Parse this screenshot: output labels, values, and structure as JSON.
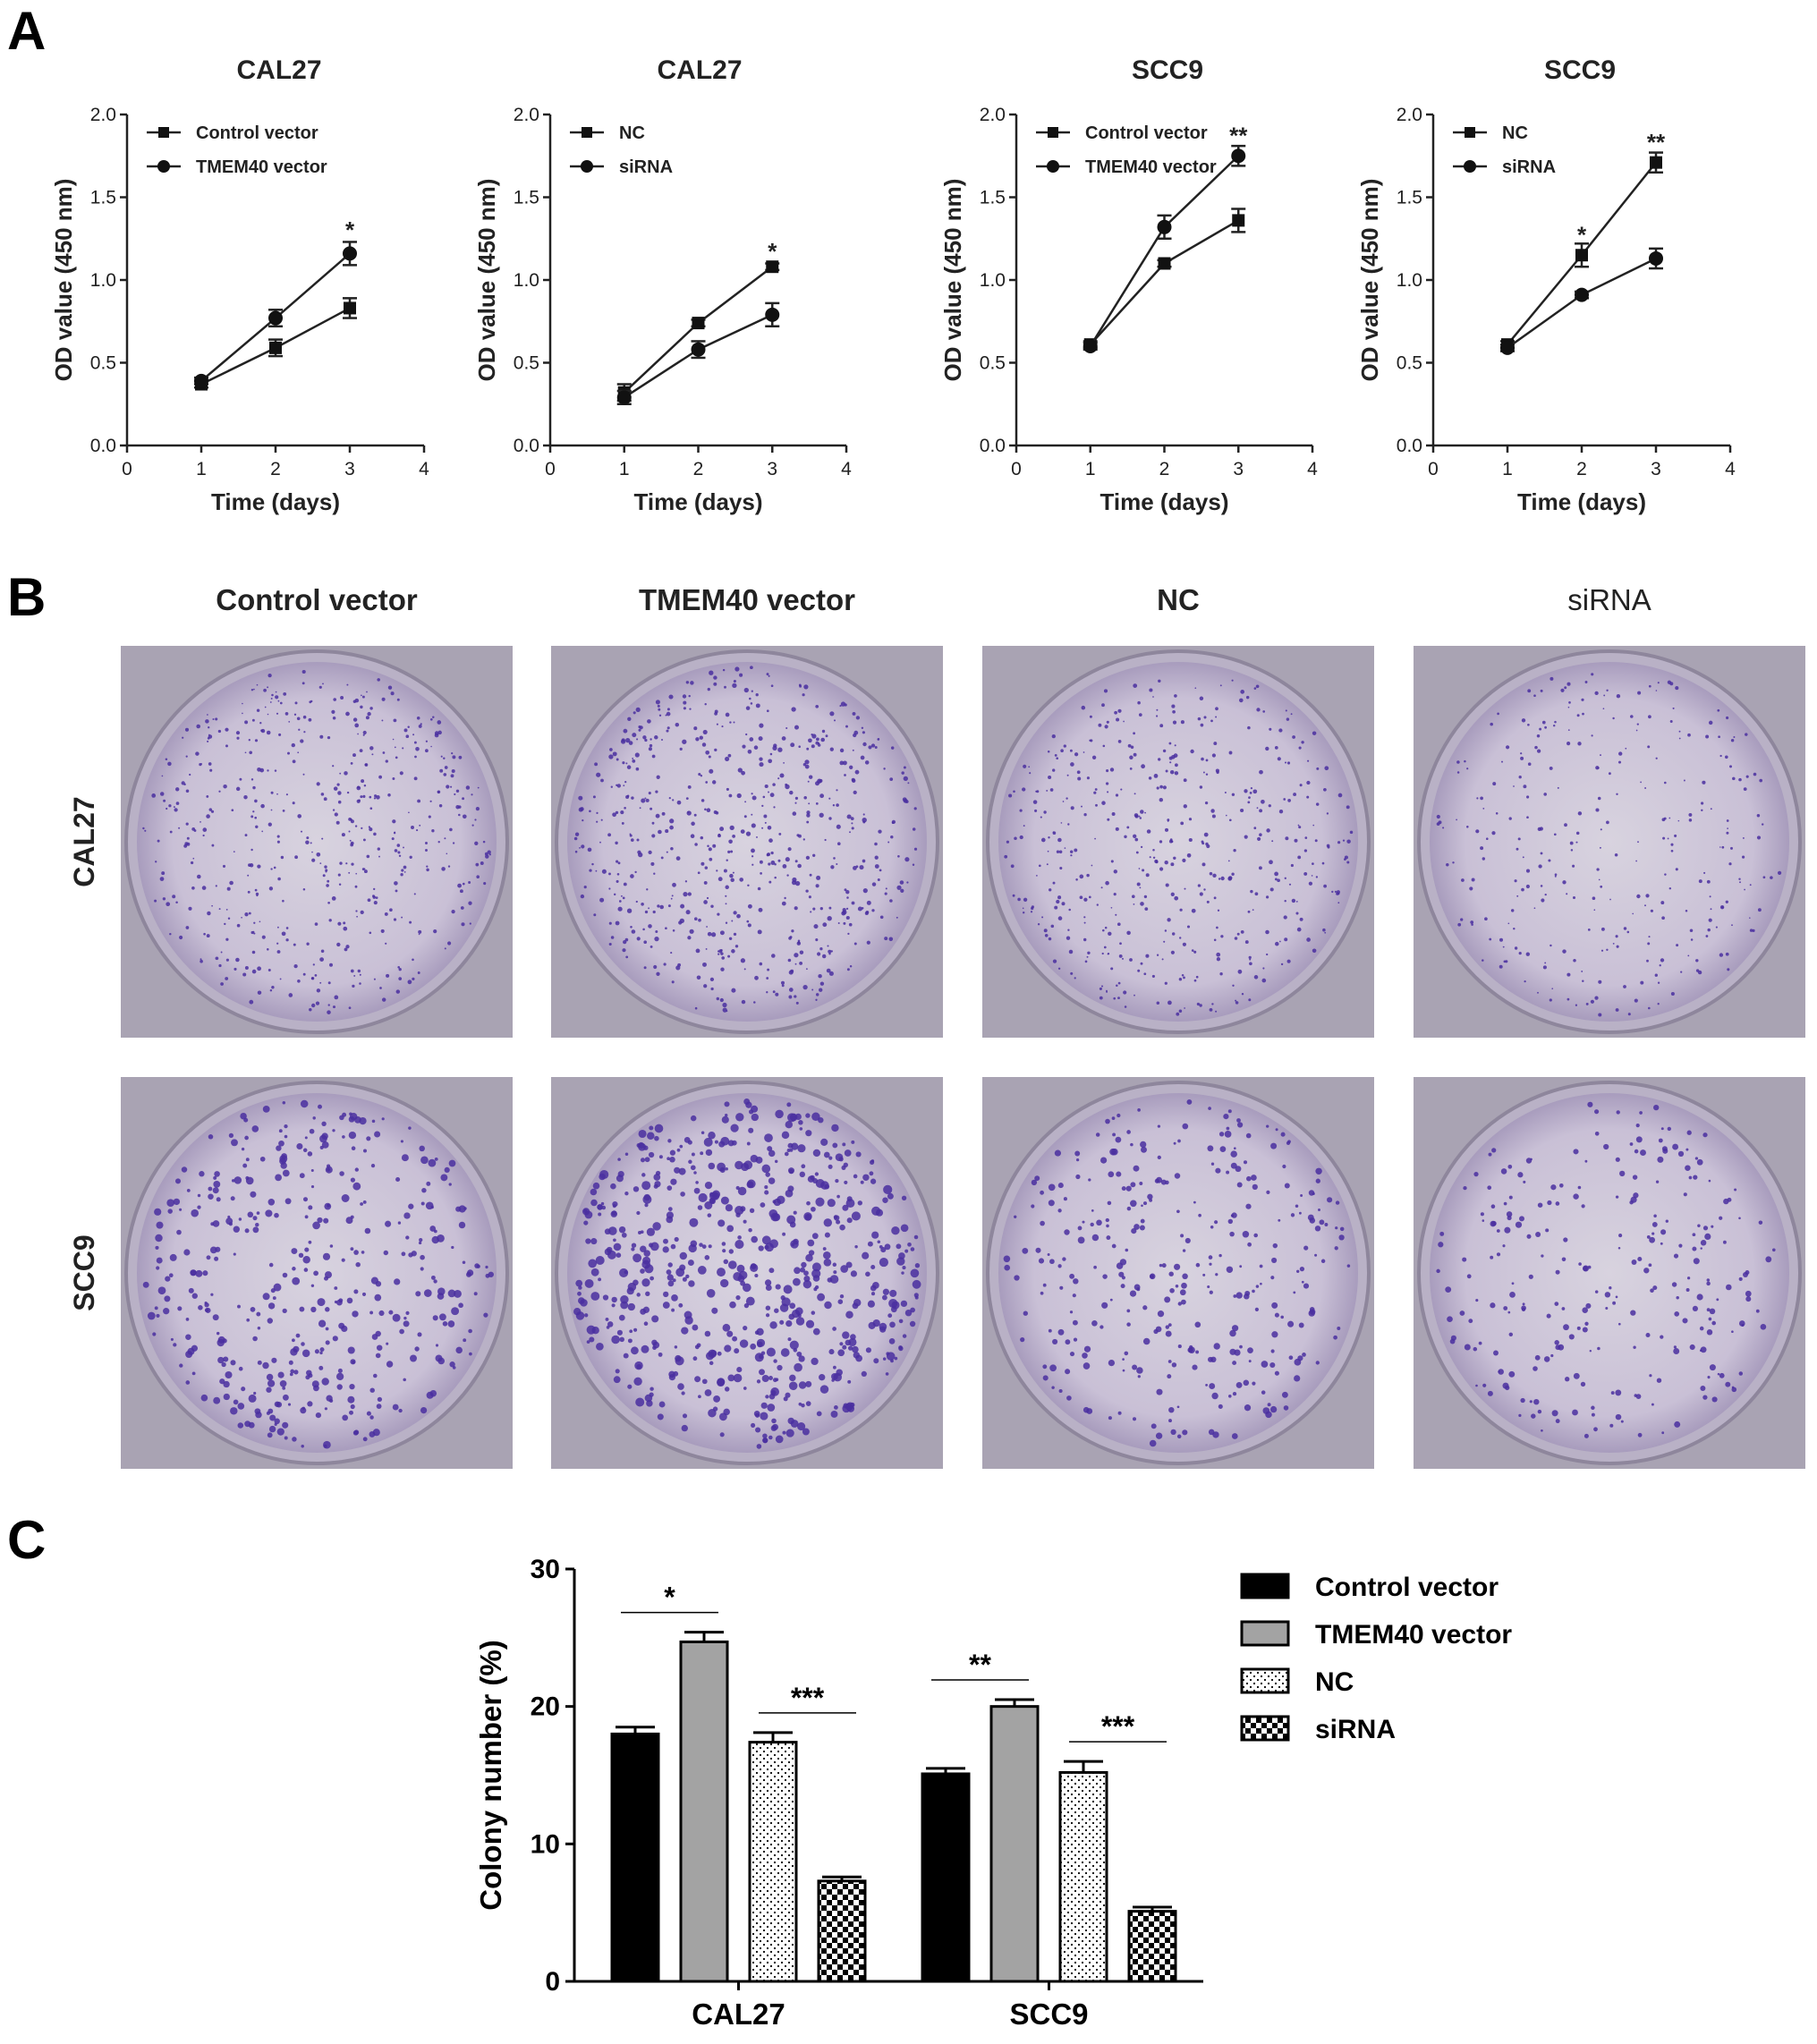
{
  "panels": {
    "a": {
      "letter": "A",
      "x_ticks": [
        "0",
        "1",
        "2",
        "3",
        "4"
      ],
      "y_ticks": [
        "0.0",
        "0.5",
        "1.0",
        "1.5",
        "2.0"
      ],
      "xlabel": "Time (days)",
      "ylabel": "OD value (450 nm)"
    },
    "b": {
      "letter": "B",
      "columns": [
        "Control vector",
        "TMEM40 vector",
        "NC",
        "siRNA"
      ],
      "rows": [
        "CAL27",
        "SCC9"
      ],
      "dish_tint": "#c6bed3",
      "colony_color": "#4a2fa0"
    },
    "c": {
      "letter": "C",
      "y_ticks": [
        "0",
        "10",
        "20",
        "30"
      ],
      "ylabel": "Colony number (%)"
    }
  },
  "chart_data": [
    {
      "type": "line",
      "panel": "A",
      "title": "CAL27",
      "xlabel": "Time (days)",
      "ylabel": "OD value (450 nm)",
      "xlim": [
        0,
        4
      ],
      "ylim": [
        0,
        2.0
      ],
      "grid": false,
      "legend": "top-left",
      "x": [
        1,
        2,
        3
      ],
      "series": [
        {
          "name": "Control vector",
          "marker": "square",
          "values": [
            0.37,
            0.59,
            0.83
          ],
          "errors": [
            0.02,
            0.05,
            0.06
          ]
        },
        {
          "name": "TMEM40 vector",
          "marker": "circle",
          "values": [
            0.39,
            0.77,
            1.16
          ],
          "errors": [
            0.02,
            0.05,
            0.07
          ]
        }
      ],
      "annotations": [
        {
          "x": 3,
          "y": 1.32,
          "text": "*"
        }
      ]
    },
    {
      "type": "line",
      "panel": "A",
      "title": "CAL27",
      "xlabel": "Time (days)",
      "ylabel": "OD value (450 nm)",
      "xlim": [
        0,
        4
      ],
      "ylim": [
        0,
        2.0
      ],
      "grid": false,
      "legend": "top-left",
      "x": [
        1,
        2,
        3
      ],
      "series": [
        {
          "name": "NC",
          "marker": "square",
          "values": [
            0.32,
            0.74,
            1.08
          ],
          "errors": [
            0.05,
            0.02,
            0.02
          ]
        },
        {
          "name": "siRNA",
          "marker": "circle",
          "values": [
            0.29,
            0.58,
            0.79
          ],
          "errors": [
            0.04,
            0.05,
            0.07
          ]
        }
      ],
      "annotations": [
        {
          "x": 3,
          "y": 1.19,
          "text": "*"
        }
      ]
    },
    {
      "type": "line",
      "panel": "A",
      "title": "SCC9",
      "xlabel": "Time (days)",
      "ylabel": "OD value (450 nm)",
      "xlim": [
        0,
        4
      ],
      "ylim": [
        0,
        2.0
      ],
      "grid": false,
      "legend": "top-left",
      "x": [
        1,
        2,
        3
      ],
      "series": [
        {
          "name": "Control vector",
          "marker": "square",
          "values": [
            0.61,
            1.1,
            1.36
          ],
          "errors": [
            0.02,
            0.02,
            0.07
          ]
        },
        {
          "name": "TMEM40 vector",
          "marker": "circle",
          "values": [
            0.6,
            1.32,
            1.75
          ],
          "errors": [
            0.02,
            0.07,
            0.06
          ]
        }
      ],
      "annotations": [
        {
          "x": 3,
          "y": 1.89,
          "text": "**"
        }
      ]
    },
    {
      "type": "line",
      "panel": "A",
      "title": "SCC9",
      "xlabel": "Time (days)",
      "ylabel": "OD value (450 nm)",
      "xlim": [
        0,
        4
      ],
      "ylim": [
        0,
        2.0
      ],
      "grid": false,
      "legend": "top-left",
      "x": [
        1,
        2,
        3
      ],
      "series": [
        {
          "name": "NC",
          "marker": "square",
          "values": [
            0.61,
            1.15,
            1.71
          ],
          "errors": [
            0.02,
            0.07,
            0.06
          ]
        },
        {
          "name": "siRNA",
          "marker": "circle",
          "values": [
            0.59,
            0.91,
            1.13
          ],
          "errors": [
            0.02,
            0.02,
            0.06
          ]
        }
      ],
      "annotations": [
        {
          "x": 2,
          "y": 1.29,
          "text": "*"
        },
        {
          "x": 3,
          "y": 1.85,
          "text": "**"
        }
      ]
    },
    {
      "type": "bar",
      "panel": "C",
      "categories": [
        "CAL27",
        "SCC9"
      ],
      "ylabel": "Colony number (%)",
      "ylim": [
        0,
        30
      ],
      "grid": false,
      "legend": "right",
      "series": [
        {
          "name": "Control vector",
          "fill": "solid-black",
          "values": [
            18.0,
            15.1
          ],
          "errors": [
            0.5,
            0.4
          ]
        },
        {
          "name": "TMEM40 vector",
          "fill": "solid-gray",
          "values": [
            24.7,
            20.0
          ],
          "errors": [
            0.7,
            0.5
          ]
        },
        {
          "name": "NC",
          "fill": "dotted",
          "values": [
            17.4,
            15.2
          ],
          "errors": [
            0.7,
            0.8
          ]
        },
        {
          "name": "siRNA",
          "fill": "checker",
          "values": [
            7.3,
            5.1
          ],
          "errors": [
            0.3,
            0.3
          ]
        }
      ],
      "annotations": [
        {
          "category": "CAL27",
          "pair": [
            "Control vector",
            "TMEM40 vector"
          ],
          "text": "*"
        },
        {
          "category": "CAL27",
          "pair": [
            "NC",
            "siRNA"
          ],
          "text": "***"
        },
        {
          "category": "SCC9",
          "pair": [
            "Control vector",
            "TMEM40 vector"
          ],
          "text": "**"
        },
        {
          "category": "SCC9",
          "pair": [
            "NC",
            "siRNA"
          ],
          "text": "***"
        }
      ]
    }
  ]
}
